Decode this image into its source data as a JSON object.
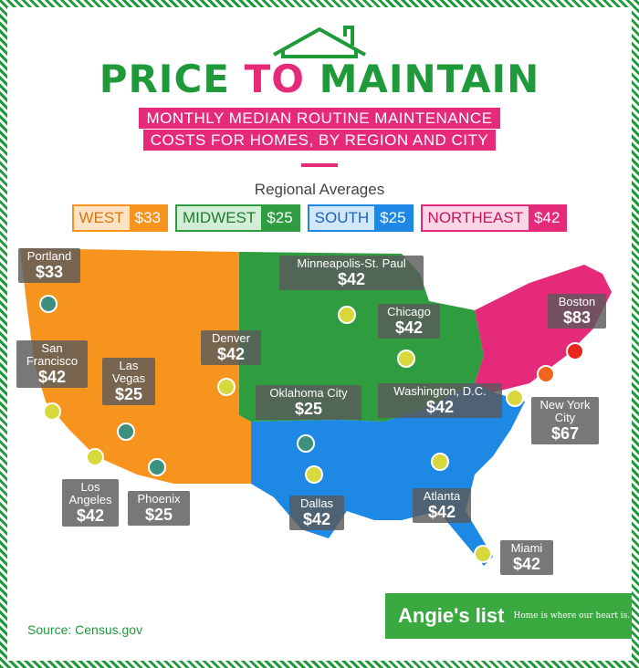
{
  "header": {
    "title": {
      "part1": "PRICE",
      "part2": "TO",
      "part3": "MAINTAIN"
    },
    "subtitle": [
      "MONTHLY MEDIAN ROUTINE MAINTENANCE",
      "COSTS FOR HOMES, BY REGION AND CITY"
    ]
  },
  "legend": {
    "title": "Regional Averages",
    "regions": [
      {
        "name": "WEST",
        "value": "$33",
        "color": "#f7941d",
        "light": "#fde3c4",
        "text": "#d9730d"
      },
      {
        "name": "MIDWEST",
        "value": "$25",
        "color": "#2e9c3f",
        "light": "#d3eed6",
        "text": "#1f7a2e"
      },
      {
        "name": "SOUTH",
        "value": "$25",
        "color": "#1e88e5",
        "light": "#d2e7fa",
        "text": "#1565c0"
      },
      {
        "name": "NORTHEAST",
        "value": "$42",
        "color": "#e62a7a",
        "light": "#fbd6e6",
        "text": "#c2185b"
      }
    ]
  },
  "cities": [
    {
      "name": "Portland",
      "value": "$33",
      "dot": "#3d8f7f"
    },
    {
      "name": "San Francisco",
      "value": "$42",
      "dot": "#d6d83c"
    },
    {
      "name": "Las Vegas",
      "value": "$25",
      "dot": "#3d8f7f"
    },
    {
      "name": "Los Angeles",
      "value": "$42",
      "dot": "#d6d83c"
    },
    {
      "name": "Phoenix",
      "value": "$25",
      "dot": "#3d8f7f"
    },
    {
      "name": "Denver",
      "value": "$42",
      "dot": "#d6d83c"
    },
    {
      "name": "Minneapolis-St. Paul",
      "value": "$42",
      "dot": "#d6d83c"
    },
    {
      "name": "Chicago",
      "value": "$42",
      "dot": "#d6d83c"
    },
    {
      "name": "Oklahoma City",
      "value": "$25",
      "dot": "#3d8f7f"
    },
    {
      "name": "Dallas",
      "value": "$42",
      "dot": "#d6d83c"
    },
    {
      "name": "Washington, D.C.",
      "value": "$42",
      "dot": "#d6d83c"
    },
    {
      "name": "Atlanta",
      "value": "$42",
      "dot": "#d6d83c"
    },
    {
      "name": "Miami",
      "value": "$42",
      "dot": "#d6d83c"
    },
    {
      "name": "Boston",
      "value": "$83",
      "dot": "#e8261c"
    },
    {
      "name": "New York City",
      "value": "$67",
      "dot": "#f0641e"
    }
  ],
  "footer": {
    "source": "Source: Census.gov",
    "logo": "Angie's list",
    "tagline": "Home is where our heart is."
  }
}
